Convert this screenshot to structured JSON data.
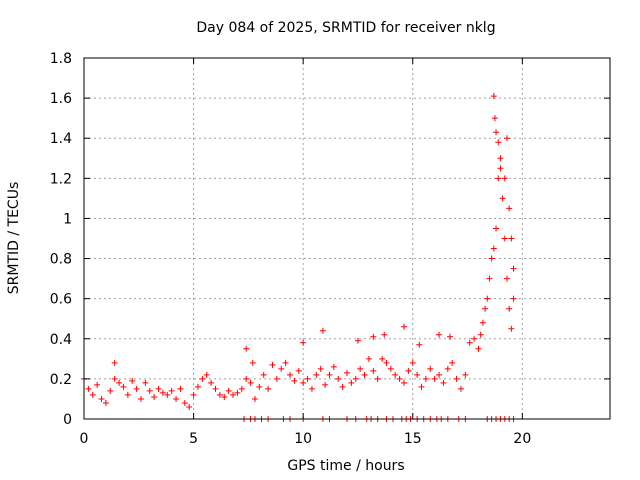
{
  "chart_data": {
    "type": "scatter",
    "title": "Day 084 of 2025, SRMTID for receiver nklg",
    "xlabel": "GPS time / hours",
    "ylabel": "SRMTID / TECUs",
    "xlim": [
      0,
      24
    ],
    "ylim": [
      0,
      1.8
    ],
    "xticks": [
      0,
      5,
      10,
      15,
      20
    ],
    "yticks": [
      0,
      0.2,
      0.4,
      0.6,
      0.8,
      1,
      1.2,
      1.4,
      1.6,
      1.8
    ],
    "xtick_labels": [
      "0",
      "5",
      "10",
      "15",
      "20"
    ],
    "ytick_labels": [
      "0",
      "0.2",
      "0.4",
      "0.6",
      "0.8",
      "1",
      "1.2",
      "1.4",
      "1.6",
      "1.8"
    ],
    "grid": true,
    "marker": "+",
    "marker_color": "#ff0000",
    "series": [
      {
        "name": "SRMTID",
        "x": [
          0.0,
          0.2,
          0.4,
          0.6,
          0.8,
          1.0,
          1.2,
          1.4,
          1.6,
          1.8,
          2.0,
          2.2,
          2.4,
          2.6,
          2.8,
          3.0,
          3.2,
          3.4,
          3.6,
          3.8,
          4.0,
          4.2,
          4.4,
          4.6,
          4.8,
          5.0,
          5.2,
          5.4,
          5.6,
          5.8,
          6.0,
          6.2,
          6.4,
          6.6,
          6.8,
          7.0,
          7.2,
          7.4,
          7.6,
          7.8,
          8.0,
          8.2,
          8.4,
          8.6,
          8.8,
          9.0,
          9.2,
          9.4,
          9.6,
          9.8,
          10.0,
          10.2,
          10.4,
          10.6,
          10.8,
          11.0,
          11.2,
          11.4,
          11.6,
          11.8,
          12.0,
          12.2,
          12.4,
          12.6,
          12.8,
          13.0,
          13.2,
          13.4,
          13.6,
          13.8,
          14.0,
          14.2,
          14.4,
          14.6,
          14.8,
          15.0,
          15.2,
          15.4,
          15.6,
          15.8,
          16.0,
          16.2,
          16.4,
          16.6,
          16.8,
          17.0,
          17.2,
          17.4,
          17.6,
          17.8,
          18.0,
          18.1,
          18.2,
          18.3,
          18.4,
          18.5,
          18.6,
          18.7,
          18.8,
          18.9,
          19.0,
          19.1,
          19.2,
          19.3,
          19.4,
          19.5,
          19.6,
          1.4,
          7.4,
          7.7,
          10.0,
          10.9,
          12.5,
          13.2,
          13.7,
          14.6,
          15.3,
          16.2,
          16.7,
          18.7,
          18.75,
          18.8,
          18.9,
          19.0,
          19.2,
          19.3,
          19.4,
          19.5,
          19.6
        ],
        "y": [
          0.2,
          0.15,
          0.12,
          0.17,
          0.1,
          0.08,
          0.14,
          0.2,
          0.18,
          0.16,
          0.12,
          0.19,
          0.15,
          0.1,
          0.18,
          0.14,
          0.11,
          0.15,
          0.13,
          0.12,
          0.14,
          0.1,
          0.15,
          0.08,
          0.06,
          0.12,
          0.16,
          0.2,
          0.22,
          0.18,
          0.15,
          0.12,
          0.11,
          0.14,
          0.12,
          0.13,
          0.15,
          0.2,
          0.18,
          0.1,
          0.16,
          0.22,
          0.15,
          0.27,
          0.2,
          0.25,
          0.28,
          0.22,
          0.19,
          0.24,
          0.18,
          0.2,
          0.15,
          0.22,
          0.25,
          0.17,
          0.22,
          0.26,
          0.2,
          0.16,
          0.23,
          0.18,
          0.2,
          0.25,
          0.22,
          0.3,
          0.24,
          0.2,
          0.3,
          0.28,
          0.25,
          0.22,
          0.2,
          0.18,
          0.24,
          0.28,
          0.22,
          0.16,
          0.2,
          0.25,
          0.2,
          0.22,
          0.18,
          0.25,
          0.28,
          0.2,
          0.15,
          0.22,
          0.38,
          0.4,
          0.35,
          0.42,
          0.48,
          0.55,
          0.6,
          0.7,
          0.8,
          0.85,
          0.95,
          1.2,
          1.3,
          1.1,
          0.9,
          0.7,
          0.55,
          0.45,
          0.6,
          0.28,
          0.35,
          0.28,
          0.38,
          0.44,
          0.39,
          0.41,
          0.42,
          0.46,
          0.37,
          0.42,
          0.41,
          1.61,
          1.5,
          1.43,
          1.38,
          1.25,
          1.2,
          1.4,
          1.05,
          0.9,
          0.75
        ],
        "zero_x": [
          7.3,
          7.6,
          7.8,
          8.1,
          8.4,
          9.1,
          9.4,
          10.0,
          10.9,
          11.2,
          12.0,
          12.4,
          12.9,
          13.1,
          13.4,
          13.8,
          14.1,
          14.5,
          14.7,
          14.9,
          15.2,
          15.5,
          15.8,
          16.1,
          16.3,
          16.6,
          17.1,
          17.4,
          18.4,
          18.6,
          18.8,
          19.0,
          19.2,
          19.4,
          19.6
        ]
      }
    ]
  }
}
